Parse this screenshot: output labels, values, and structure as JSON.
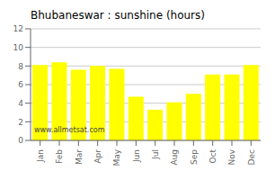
{
  "chart_data": {
    "type": "bar",
    "title": "Bhubaneswar : sunshine (hours)",
    "categories": [
      "Jan",
      "Feb",
      "Mar",
      "Apr",
      "May",
      "Jun",
      "Jul",
      "Aug",
      "Sep",
      "Oct",
      "Nov",
      "Dec"
    ],
    "values": [
      8.1,
      8.4,
      7.6,
      8.0,
      7.7,
      4.7,
      3.3,
      4.1,
      5.0,
      7.1,
      7.1,
      8.1
    ],
    "color": "#ffff00",
    "ylim": [
      0,
      12
    ],
    "yticks": [
      0,
      2,
      4,
      6,
      8,
      10,
      12
    ],
    "grid": true,
    "annotations": [
      "www.allmetsat.com"
    ]
  }
}
